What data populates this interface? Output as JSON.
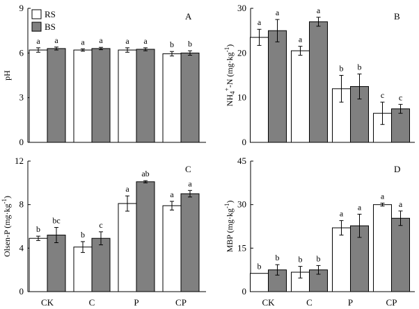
{
  "legend": {
    "items": [
      {
        "label": "RS",
        "color": "#ffffff"
      },
      {
        "label": "BS",
        "color": "#808080"
      }
    ]
  },
  "colors": {
    "axis": "#000000",
    "rs_fill": "#ffffff",
    "bs_fill": "#808080"
  },
  "chart_data": [
    {
      "type": "bar",
      "panel": "A",
      "ylabel": "pH",
      "ylim": [
        0,
        9
      ],
      "yticks": [
        0,
        3,
        6,
        9
      ],
      "categories": [
        "CK",
        "C",
        "P",
        "CP"
      ],
      "series": [
        {
          "name": "RS",
          "values": [
            6.2,
            6.2,
            6.2,
            5.95
          ],
          "errors": [
            0.15,
            0.08,
            0.15,
            0.15
          ],
          "labels": [
            "a",
            "a",
            "a",
            "b"
          ]
        },
        {
          "name": "BS",
          "values": [
            6.3,
            6.3,
            6.25,
            6.0
          ],
          "errors": [
            0.1,
            0.08,
            0.1,
            0.15
          ],
          "labels": [
            "a",
            "a",
            "a",
            "b"
          ]
        }
      ]
    },
    {
      "type": "bar",
      "panel": "B",
      "ylabel": "NH4+-N (mg·kg-1)",
      "ylabel_parts": {
        "base1": "NH",
        "sub1": "4",
        "sup1": "+",
        "mid": "-N (mg·kg",
        "sup2": "-1",
        "end": ")"
      },
      "ylim": [
        0,
        30
      ],
      "yticks": [
        0,
        10,
        20,
        30
      ],
      "categories": [
        "CK",
        "C",
        "P",
        "CP"
      ],
      "series": [
        {
          "name": "RS",
          "values": [
            23.5,
            20.5,
            12.0,
            6.5
          ],
          "errors": [
            1.8,
            1.0,
            3.0,
            2.5
          ],
          "labels": [
            "a",
            "a",
            "b",
            "c"
          ]
        },
        {
          "name": "BS",
          "values": [
            25.0,
            27.0,
            12.5,
            7.5
          ],
          "errors": [
            2.5,
            1.0,
            2.8,
            1.0
          ],
          "labels": [
            "a",
            "a",
            "b",
            "c"
          ]
        }
      ]
    },
    {
      "type": "bar",
      "panel": "C",
      "ylabel": "Olsen-P (mg·kg-1)",
      "ylabel_parts": {
        "base1": "Olsen-P (mg·kg",
        "sup2": "-1",
        "end": ")"
      },
      "ylim": [
        0,
        12
      ],
      "yticks": [
        0,
        4,
        8,
        12
      ],
      "categories": [
        "CK",
        "C",
        "P",
        "CP"
      ],
      "series": [
        {
          "name": "RS",
          "values": [
            4.9,
            4.1,
            8.1,
            7.9
          ],
          "errors": [
            0.2,
            0.5,
            0.7,
            0.4
          ],
          "labels": [
            "b",
            "b",
            "a",
            "a"
          ]
        },
        {
          "name": "BS",
          "values": [
            5.2,
            4.9,
            10.1,
            9.0
          ],
          "errors": [
            0.7,
            0.6,
            0.1,
            0.3
          ],
          "labels": [
            "bc",
            "c",
            "ab",
            "a"
          ]
        }
      ]
    },
    {
      "type": "bar",
      "panel": "D",
      "ylabel": "MBP (mg·kg-1)",
      "ylabel_parts": {
        "base1": "MBP (mg·kg",
        "sup2": "-1",
        "end": ")"
      },
      "ylim": [
        0,
        45
      ],
      "yticks": [
        0,
        15,
        30,
        45
      ],
      "categories": [
        "CK",
        "C",
        "P",
        "CP"
      ],
      "series": [
        {
          "name": "RS",
          "values": [
            6.3,
            6.7,
            22.0,
            30.0
          ],
          "errors": [
            0.0,
            2.0,
            2.5,
            0.5
          ],
          "labels": [
            "b",
            "b",
            "a",
            "a"
          ]
        },
        {
          "name": "BS",
          "values": [
            7.5,
            7.5,
            22.7,
            25.3
          ],
          "errors": [
            1.8,
            1.5,
            4.0,
            2.5
          ],
          "labels": [
            "b",
            "b",
            "a",
            "a"
          ]
        }
      ]
    }
  ]
}
